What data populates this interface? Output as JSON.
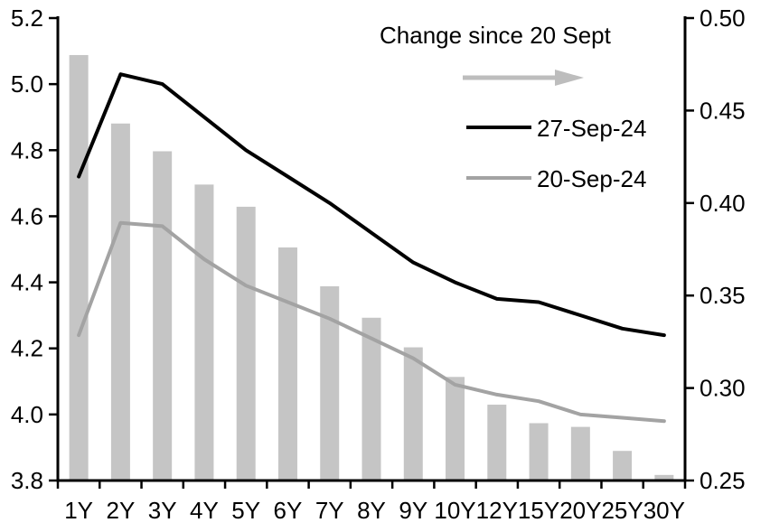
{
  "chart_data": {
    "type": "combo-bar-line",
    "title": "",
    "categories": [
      "1Y",
      "2Y",
      "3Y",
      "4Y",
      "5Y",
      "6Y",
      "7Y",
      "8Y",
      "9Y",
      "10Y",
      "12Y",
      "15Y",
      "20Y",
      "25Y",
      "30Y"
    ],
    "series": [
      {
        "name": "Change since 20 Sept",
        "type": "bar",
        "axis": "right",
        "color": "#c5c5c5",
        "values": [
          0.48,
          0.443,
          0.428,
          0.41,
          0.398,
          0.376,
          0.355,
          0.338,
          0.322,
          0.306,
          0.291,
          0.281,
          0.279,
          0.266,
          0.253
        ]
      },
      {
        "name": "27-Sep-24",
        "type": "line",
        "axis": "left",
        "color": "#000000",
        "values": [
          4.72,
          5.03,
          5.0,
          4.9,
          4.8,
          4.72,
          4.64,
          4.55,
          4.46,
          4.4,
          4.35,
          4.34,
          4.3,
          4.26,
          4.24
        ]
      },
      {
        "name": "20-Sep-24",
        "type": "line",
        "axis": "left",
        "color": "#a3a3a3",
        "values": [
          4.24,
          4.58,
          4.57,
          4.47,
          4.39,
          4.34,
          4.29,
          4.23,
          4.17,
          4.09,
          4.06,
          4.04,
          4.0,
          3.99,
          3.98
        ]
      }
    ],
    "left_axis": {
      "min": 3.8,
      "max": 5.2,
      "step": 0.2,
      "tick_labels": [
        "5.2",
        "5.0",
        "4.8",
        "4.6",
        "4.4",
        "4.2",
        "4.0",
        "3.8"
      ]
    },
    "right_axis": {
      "min": 0.25,
      "max": 0.5,
      "step": 0.05,
      "tick_labels": [
        "0.50",
        "0.45",
        "0.40",
        "0.35",
        "0.30",
        "0.25"
      ]
    },
    "legend": {
      "bar_label": "Change since 20 Sept",
      "arrow_icon": "right-arrow",
      "arrow_color": "#bdbdbd",
      "line1_label": "27-Sep-24",
      "line2_label": "20-Sep-24"
    },
    "grid": false,
    "legend_position": "top-inside",
    "axis_color": "#000000",
    "background": "#ffffff"
  }
}
